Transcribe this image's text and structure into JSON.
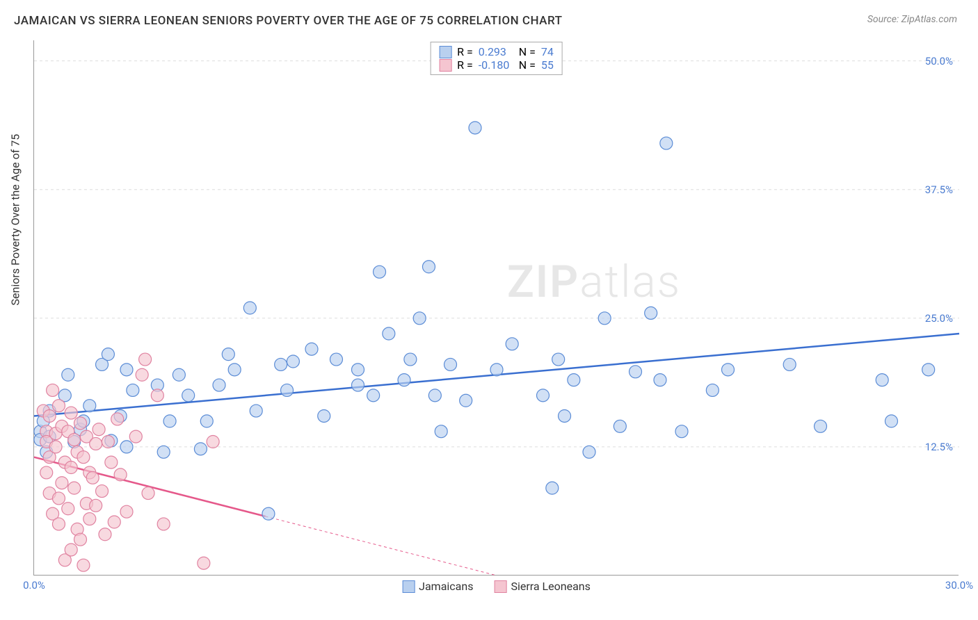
{
  "title": "JAMAICAN VS SIERRA LEONEAN SENIORS POVERTY OVER THE AGE OF 75 CORRELATION CHART",
  "source_label": "Source: ",
  "source_name": "ZipAtlas.com",
  "y_axis_title": "Seniors Poverty Over the Age of 75",
  "watermark_prefix": "ZIP",
  "watermark_suffix": "atlas",
  "chart": {
    "type": "scatter",
    "xlim": [
      0,
      30
    ],
    "ylim": [
      0,
      52
    ],
    "x_ticks": [
      {
        "v": 0,
        "label": "0.0%"
      },
      {
        "v": 30,
        "label": "30.0%"
      }
    ],
    "y_ticks": [
      {
        "v": 12.5,
        "label": "12.5%"
      },
      {
        "v": 25.0,
        "label": "25.0%"
      },
      {
        "v": 37.5,
        "label": "37.5%"
      },
      {
        "v": 50.0,
        "label": "50.0%"
      }
    ],
    "background_color": "#ffffff",
    "grid_color": "#dddddd",
    "axis_color": "#999999",
    "tick_label_color_blue": "#4a7bd0",
    "marker_radius": 9,
    "marker_stroke_width": 1.2,
    "line_width": 2.5,
    "series": [
      {
        "key": "jamaicans",
        "label": "Jamaicans",
        "fill": "#b9d0ef",
        "stroke": "#5b8cd6",
        "line_color": "#3a6fd0",
        "R_label": "R = ",
        "R": "0.293",
        "N_label": "N = ",
        "N": "74",
        "trend": {
          "x1": 0,
          "y1": 15.5,
          "x2": 30,
          "y2": 23.5,
          "solid_until_x": 30
        },
        "points": [
          [
            0.2,
            14.0
          ],
          [
            0.2,
            13.2
          ],
          [
            0.3,
            15.0
          ],
          [
            0.4,
            12.0
          ],
          [
            0.5,
            13.5
          ],
          [
            0.5,
            16.0
          ],
          [
            1.0,
            17.5
          ],
          [
            1.1,
            19.5
          ],
          [
            1.3,
            13.0
          ],
          [
            1.5,
            14.2
          ],
          [
            1.6,
            15.0
          ],
          [
            1.8,
            16.5
          ],
          [
            2.2,
            20.5
          ],
          [
            2.4,
            21.5
          ],
          [
            2.5,
            13.1
          ],
          [
            2.8,
            15.5
          ],
          [
            3.0,
            12.5
          ],
          [
            3.0,
            20.0
          ],
          [
            3.2,
            18.0
          ],
          [
            4.0,
            18.5
          ],
          [
            4.2,
            12.0
          ],
          [
            4.4,
            15.0
          ],
          [
            4.7,
            19.5
          ],
          [
            5.0,
            17.5
          ],
          [
            5.4,
            12.3
          ],
          [
            5.6,
            15.0
          ],
          [
            6.0,
            18.5
          ],
          [
            6.3,
            21.5
          ],
          [
            6.5,
            20.0
          ],
          [
            7.0,
            26.0
          ],
          [
            7.2,
            16.0
          ],
          [
            7.6,
            6.0
          ],
          [
            8.0,
            20.5
          ],
          [
            8.2,
            18.0
          ],
          [
            8.4,
            20.8
          ],
          [
            9.0,
            22.0
          ],
          [
            9.4,
            15.5
          ],
          [
            9.8,
            21.0
          ],
          [
            10.5,
            20.0
          ],
          [
            10.5,
            18.5
          ],
          [
            11.0,
            17.5
          ],
          [
            11.2,
            29.5
          ],
          [
            11.5,
            23.5
          ],
          [
            12.0,
            19.0
          ],
          [
            12.2,
            21.0
          ],
          [
            12.5,
            25.0
          ],
          [
            12.8,
            30.0
          ],
          [
            13.0,
            17.5
          ],
          [
            13.2,
            14.0
          ],
          [
            13.5,
            20.5
          ],
          [
            14.0,
            17.0
          ],
          [
            14.3,
            43.5
          ],
          [
            15.0,
            20.0
          ],
          [
            15.5,
            22.5
          ],
          [
            16.5,
            17.5
          ],
          [
            16.8,
            8.5
          ],
          [
            17.0,
            21.0
          ],
          [
            17.2,
            15.5
          ],
          [
            17.5,
            19.0
          ],
          [
            18.0,
            12.0
          ],
          [
            18.5,
            25.0
          ],
          [
            19.0,
            14.5
          ],
          [
            19.5,
            19.8
          ],
          [
            20.0,
            25.5
          ],
          [
            20.3,
            19.0
          ],
          [
            20.5,
            42.0
          ],
          [
            21.0,
            14.0
          ],
          [
            22.0,
            18.0
          ],
          [
            22.5,
            20.0
          ],
          [
            24.5,
            20.5
          ],
          [
            25.5,
            14.5
          ],
          [
            27.5,
            19.0
          ],
          [
            27.8,
            15.0
          ],
          [
            29.0,
            20.0
          ]
        ]
      },
      {
        "key": "sierra_leoneans",
        "label": "Sierra Leoneans",
        "fill": "#f5c5d0",
        "stroke": "#e082a0",
        "line_color": "#e5588a",
        "R_label": "R = ",
        "R": "-0.180",
        "N_label": "N = ",
        "N": "55",
        "trend": {
          "x1": 0,
          "y1": 11.5,
          "x2": 15,
          "y2": 0,
          "solid_until_x": 7.5
        },
        "points": [
          [
            0.3,
            16.0
          ],
          [
            0.4,
            14.0
          ],
          [
            0.4,
            13.0
          ],
          [
            0.4,
            10.0
          ],
          [
            0.5,
            15.5
          ],
          [
            0.5,
            11.5
          ],
          [
            0.5,
            8.0
          ],
          [
            0.6,
            18.0
          ],
          [
            0.6,
            6.0
          ],
          [
            0.7,
            13.8
          ],
          [
            0.7,
            12.5
          ],
          [
            0.8,
            16.5
          ],
          [
            0.8,
            7.5
          ],
          [
            0.8,
            5.0
          ],
          [
            0.9,
            14.5
          ],
          [
            0.9,
            9.0
          ],
          [
            1.0,
            11.0
          ],
          [
            1.0,
            1.5
          ],
          [
            1.1,
            14.0
          ],
          [
            1.1,
            6.5
          ],
          [
            1.2,
            15.8
          ],
          [
            1.2,
            10.5
          ],
          [
            1.2,
            2.5
          ],
          [
            1.3,
            13.2
          ],
          [
            1.3,
            8.5
          ],
          [
            1.4,
            12.0
          ],
          [
            1.4,
            4.5
          ],
          [
            1.5,
            14.8
          ],
          [
            1.5,
            3.5
          ],
          [
            1.6,
            11.5
          ],
          [
            1.6,
            1.0
          ],
          [
            1.7,
            13.5
          ],
          [
            1.7,
            7.0
          ],
          [
            1.8,
            10.0
          ],
          [
            1.8,
            5.5
          ],
          [
            1.9,
            9.5
          ],
          [
            2.0,
            12.8
          ],
          [
            2.0,
            6.8
          ],
          [
            2.1,
            14.2
          ],
          [
            2.2,
            8.2
          ],
          [
            2.3,
            4.0
          ],
          [
            2.4,
            13.0
          ],
          [
            2.5,
            11.0
          ],
          [
            2.6,
            5.2
          ],
          [
            2.7,
            15.2
          ],
          [
            2.8,
            9.8
          ],
          [
            3.0,
            6.2
          ],
          [
            3.3,
            13.5
          ],
          [
            3.5,
            19.5
          ],
          [
            3.6,
            21.0
          ],
          [
            3.7,
            8.0
          ],
          [
            4.0,
            17.5
          ],
          [
            4.2,
            5.0
          ],
          [
            5.5,
            1.2
          ],
          [
            5.8,
            13.0
          ]
        ]
      }
    ]
  }
}
